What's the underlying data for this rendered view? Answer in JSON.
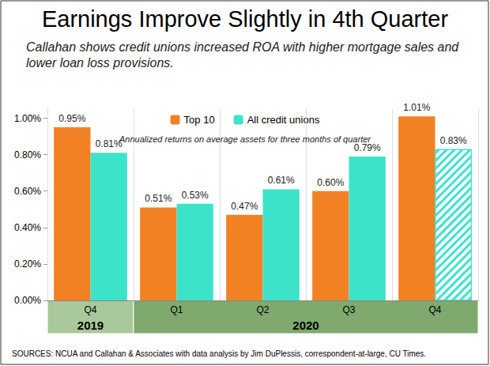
{
  "chart_data": {
    "type": "bar",
    "title": "Earnings Improve Slightly in 4th Quarter",
    "subtitle": "Callahan shows credit unions increased ROA with higher mortgage sales and lower loan loss provisions.",
    "annotation": "Annualized returns on average assets for three months of quarter",
    "source": "SOURCES: NCUA and Callahan & Associates with data analysis by Jim DuPlessis, correspondent-at-large, CU Times.",
    "categories": [
      "Q4",
      "Q1",
      "Q2",
      "Q3",
      "Q4"
    ],
    "category_groups": [
      {
        "label": "2019",
        "from": 0,
        "to": 0
      },
      {
        "label": "2020",
        "from": 1,
        "to": 4
      }
    ],
    "series": [
      {
        "name": "Top 10",
        "color": "#f28123",
        "values": [
          0.95,
          0.51,
          0.47,
          0.6,
          1.01
        ],
        "value_labels": [
          "0.95%",
          "0.51%",
          "0.47%",
          "0.60%",
          "1.01%"
        ]
      },
      {
        "name": "All credit unions",
        "color": "#3de3c9",
        "values": [
          0.81,
          0.53,
          0.61,
          0.79,
          0.83
        ],
        "value_labels": [
          "0.81%",
          "0.53%",
          "0.61%",
          "0.79%",
          "0.83%"
        ],
        "fill": [
          "solid",
          "solid",
          "solid",
          "solid",
          "hatched"
        ]
      }
    ],
    "ylim": [
      0,
      1.05
    ],
    "yticks": [
      {
        "value": 0,
        "label": "0.00%"
      },
      {
        "value": 0.2,
        "label": "0.20%"
      },
      {
        "value": 0.4,
        "label": "0.40%"
      },
      {
        "value": 0.6,
        "label": "0.60%"
      },
      {
        "value": 0.8,
        "label": "0.80%"
      },
      {
        "value": 1.0,
        "label": "1.00%"
      }
    ],
    "grid": false,
    "legend": "top",
    "data_labels": true
  }
}
